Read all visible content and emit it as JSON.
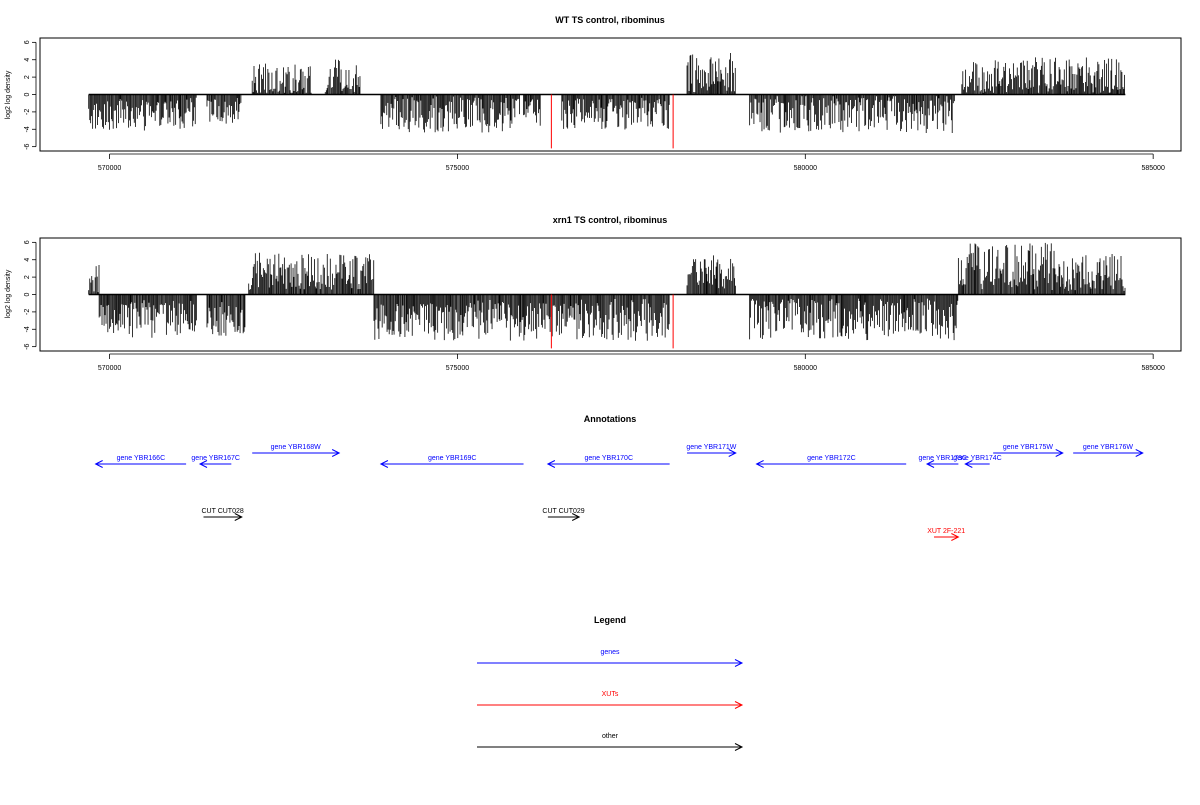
{
  "panels": [
    {
      "id": "wt",
      "title": "WT TS control, ribominus",
      "ylabel": "log2 log density",
      "ylim": [
        -6.5,
        6.5
      ],
      "yticks": [
        -6,
        -4,
        -2,
        0,
        2,
        4,
        6
      ],
      "ytick_labels": [
        "-6",
        "-4",
        "-2",
        "0",
        "2",
        "4",
        "6"
      ],
      "xlim": [
        569000,
        585400
      ],
      "xticks": [
        570000,
        575000,
        580000,
        585000
      ],
      "xtick_labels": [
        "570000",
        "575000",
        "580000",
        "585000"
      ]
    },
    {
      "id": "xrn1",
      "title": "xrn1 TS control, ribominus",
      "ylabel": "log2 log density",
      "ylim": [
        -6.5,
        6.5
      ],
      "yticks": [
        -6,
        -4,
        -2,
        0,
        2,
        4,
        6
      ],
      "ytick_labels": [
        "-6",
        "-4",
        "-2",
        "0",
        "2",
        "4",
        "6"
      ],
      "xlim": [
        569000,
        585400
      ],
      "xticks": [
        570000,
        575000,
        580000,
        585000
      ],
      "xtick_labels": [
        "570000",
        "575000",
        "580000",
        "585000"
      ]
    }
  ],
  "chart_data": [
    {
      "type": "bar",
      "title": "WT TS control, ribominus",
      "ylabel": "log2 log density",
      "xlim": [
        569000,
        585400
      ],
      "ylim": [
        -6.5,
        6.5
      ],
      "grid": false,
      "baseline": 0,
      "bar_color": "#000000",
      "highlight_color": "#ff0000",
      "highlighted_bars": [
        {
          "x": 576350,
          "y": -6.2
        },
        {
          "x": 578100,
          "y": -6.2
        }
      ],
      "segments": [
        {
          "from": 569700,
          "to": 571250,
          "mean": -2.4,
          "spread": 1.1,
          "sign": -1
        },
        {
          "from": 571400,
          "to": 571900,
          "mean": -2.0,
          "spread": 1.0,
          "sign": -1
        },
        {
          "from": 572050,
          "to": 572900,
          "mean": 1.5,
          "spread": 1.3,
          "sign": 1
        },
        {
          "from": 573100,
          "to": 573600,
          "mean": 2.2,
          "spread": 1.2,
          "sign": 1
        },
        {
          "from": 573900,
          "to": 575900,
          "mean": -2.3,
          "spread": 1.3,
          "sign": -1
        },
        {
          "from": 575950,
          "to": 576200,
          "mean": -2.0,
          "spread": 1.0,
          "sign": -1
        },
        {
          "from": 576500,
          "to": 578050,
          "mean": -2.3,
          "spread": 1.1,
          "sign": -1
        },
        {
          "from": 578300,
          "to": 579000,
          "mean": 2.6,
          "spread": 1.5,
          "sign": 1
        },
        {
          "from": 579200,
          "to": 582150,
          "mean": -2.2,
          "spread": 1.4,
          "sign": -1
        },
        {
          "from": 582250,
          "to": 584600,
          "mean": 2.2,
          "spread": 1.4,
          "sign": 1
        }
      ]
    },
    {
      "type": "bar",
      "title": "xrn1 TS control, ribominus",
      "ylabel": "log2 log density",
      "xlim": [
        569000,
        585400
      ],
      "ylim": [
        -6.5,
        6.5
      ],
      "grid": false,
      "baseline": 0,
      "bar_color": "#000000",
      "highlight_color": "#ff0000",
      "highlighted_bars": [
        {
          "x": 576350,
          "y": -6.2
        },
        {
          "x": 578100,
          "y": -6.2
        }
      ],
      "segments": [
        {
          "from": 569700,
          "to": 569850,
          "mean": 1.8,
          "spread": 1.0,
          "sign": 1
        },
        {
          "from": 569850,
          "to": 571250,
          "mean": -3.0,
          "spread": 1.3,
          "sign": -1
        },
        {
          "from": 571400,
          "to": 571950,
          "mean": -3.0,
          "spread": 1.1,
          "sign": -1
        },
        {
          "from": 572000,
          "to": 573800,
          "mean": 2.6,
          "spread": 1.4,
          "sign": 1
        },
        {
          "from": 573800,
          "to": 578050,
          "mean": -3.1,
          "spread": 1.4,
          "sign": -1
        },
        {
          "from": 578300,
          "to": 579000,
          "mean": 2.6,
          "spread": 1.2,
          "sign": 1
        },
        {
          "from": 579200,
          "to": 582200,
          "mean": -2.9,
          "spread": 1.5,
          "sign": -1
        },
        {
          "from": 582200,
          "to": 583700,
          "mean": 3.4,
          "spread": 1.6,
          "sign": 1
        },
        {
          "from": 583700,
          "to": 584600,
          "mean": 2.6,
          "spread": 1.4,
          "sign": 1
        }
      ]
    }
  ],
  "annotations": {
    "title": "Annotations",
    "xlim": [
      569000,
      585400
    ],
    "colors": {
      "gene": "#0000ff",
      "xut": "#ff0000",
      "other": "#000000"
    },
    "features": [
      {
        "label": "gene YBR166C",
        "start": 569800,
        "end": 571100,
        "strand": "-",
        "kind": "gene",
        "row": 1
      },
      {
        "label": "gene YBR167C",
        "start": 571300,
        "end": 571750,
        "strand": "-",
        "kind": "gene",
        "row": 1
      },
      {
        "label": "gene YBR168W",
        "start": 572050,
        "end": 573300,
        "strand": "+",
        "kind": "gene",
        "row": 0
      },
      {
        "label": "gene YBR169C",
        "start": 573900,
        "end": 575950,
        "strand": "-",
        "kind": "gene",
        "row": 1
      },
      {
        "label": "gene YBR170C",
        "start": 576300,
        "end": 578050,
        "strand": "-",
        "kind": "gene",
        "row": 1
      },
      {
        "label": "gene YBR171W",
        "start": 578300,
        "end": 579000,
        "strand": "+",
        "kind": "gene",
        "row": 0
      },
      {
        "label": "gene YBR172C",
        "start": 579300,
        "end": 581450,
        "strand": "-",
        "kind": "gene",
        "row": 1
      },
      {
        "label": "gene YBR173C",
        "start": 581750,
        "end": 582200,
        "strand": "-",
        "kind": "gene",
        "row": 1,
        "label_text": "gene YBR173C"
      },
      {
        "label": "gene YBR174C",
        "start": 582300,
        "end": 582650,
        "strand": "-",
        "kind": "gene",
        "row": 1
      },
      {
        "label": "gene YBR175W",
        "start": 582700,
        "end": 583700,
        "strand": "+",
        "kind": "gene",
        "row": 0
      },
      {
        "label": "gene YBR176W",
        "start": 583850,
        "end": 584850,
        "strand": "+",
        "kind": "gene",
        "row": 0
      },
      {
        "label": "CUT CUT028",
        "start": 571350,
        "end": 571900,
        "strand": "+",
        "kind": "other",
        "row": 2
      },
      {
        "label": "CUT CUT029",
        "start": 576300,
        "end": 576750,
        "strand": "+",
        "kind": "other",
        "row": 2
      },
      {
        "label": "XUT 2F-221",
        "start": 581850,
        "end": 582200,
        "strand": "+",
        "kind": "xut",
        "row": 3
      }
    ]
  },
  "legend": {
    "title": "Legend",
    "items": [
      {
        "label": "genes",
        "color": "#0000ff"
      },
      {
        "label": "XUTs",
        "color": "#ff0000"
      },
      {
        "label": "other",
        "color": "#000000"
      }
    ]
  }
}
